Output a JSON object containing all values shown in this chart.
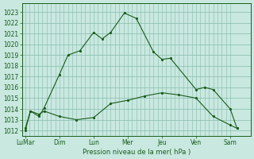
{
  "xlabel": "Pression niveau de la mer( hPa )",
  "bg_color": "#c8e8e0",
  "grid_color": "#88bbaa",
  "line_color": "#1a5c1a",
  "ylim": [
    1011.5,
    1023.8
  ],
  "yticks": [
    1012,
    1013,
    1014,
    1015,
    1016,
    1017,
    1018,
    1019,
    1020,
    1021,
    1022,
    1023
  ],
  "x_labels": [
    "LuMar",
    "Dim",
    "Lun",
    "Mer",
    "Jeu",
    "Ven",
    "Sam"
  ],
  "x_positions": [
    0,
    2,
    4,
    6,
    8,
    10,
    12
  ],
  "xlim": [
    -0.2,
    13.2
  ],
  "line1_x": [
    0.0,
    0.3,
    0.8,
    1.1,
    2.0,
    2.5,
    3.2,
    4.0,
    4.5,
    5.0,
    5.8,
    6.5,
    7.5,
    8.0,
    8.5,
    10.0,
    10.5,
    11.0,
    12.0,
    12.4
  ],
  "line1_y": [
    1012.0,
    1013.8,
    1013.3,
    1014.1,
    1017.2,
    1019.0,
    1019.4,
    1021.1,
    1020.5,
    1021.1,
    1022.9,
    1022.4,
    1019.3,
    1018.6,
    1018.7,
    1015.8,
    1016.0,
    1015.8,
    1014.0,
    1012.2
  ],
  "line2_x": [
    0.0,
    0.3,
    0.8,
    1.1,
    2.0,
    3.0,
    4.0,
    5.0,
    6.0,
    7.0,
    8.0,
    9.0,
    10.0,
    11.0,
    12.0,
    12.4
  ],
  "line2_y": [
    1012.2,
    1013.8,
    1013.5,
    1013.8,
    1013.3,
    1013.0,
    1013.2,
    1014.5,
    1014.8,
    1015.2,
    1015.5,
    1015.3,
    1015.0,
    1013.3,
    1012.5,
    1012.2
  ],
  "ytick_fontsize": 5.5,
  "xtick_fontsize": 5.5,
  "xlabel_fontsize": 6.0
}
